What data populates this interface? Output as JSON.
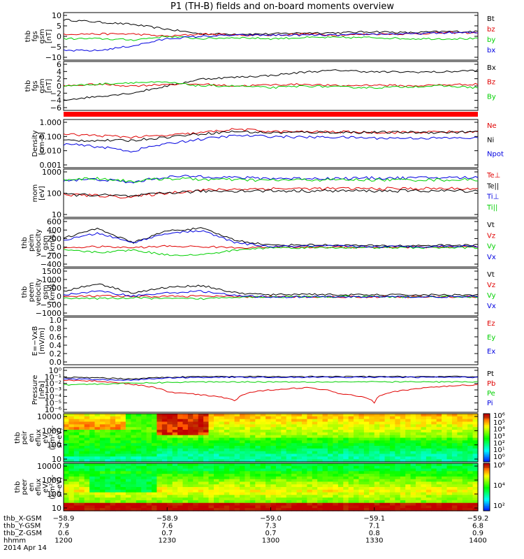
{
  "title": "P1 (TH-B) fields and on-board moments overview",
  "colors": {
    "black": "#000000",
    "red": "#e00000",
    "blue": "#0000e0",
    "green": "#00d000",
    "flag_bar": "#ff0000"
  },
  "panels": [
    {
      "id": "fgs-gsm",
      "ylabel": [
        "thb",
        "fgs",
        "gsm",
        "[nT]"
      ],
      "ticks": [
        "10",
        "5",
        "0",
        "−5",
        "−10"
      ],
      "legend": [
        {
          "label": "Bt",
          "color": "black"
        },
        {
          "label": "bz",
          "color": "red"
        },
        {
          "label": "by",
          "color": "green"
        },
        {
          "label": "bx",
          "color": "blue"
        }
      ]
    },
    {
      "id": "fgs-gsm-smoothed",
      "ylabel": [
        "thb",
        "fgs",
        "gsm",
        "[nT]"
      ],
      "ticks": [
        "6",
        "4",
        "2",
        "0",
        "−2",
        "−4",
        "−6"
      ],
      "legend": [
        {
          "label": "Bx",
          "color": "black"
        },
        {
          "label": "Bz",
          "color": "red"
        },
        {
          "label": "By",
          "color": "green"
        }
      ]
    },
    {
      "id": "density",
      "ylabel": [
        "Density",
        "[cm-3]"
      ],
      "ticks": [
        "1.000",
        "0.100",
        "0.010",
        "0.001"
      ],
      "legend": [
        {
          "label": "Ne",
          "color": "red"
        },
        {
          "label": "Ni",
          "color": "black"
        },
        {
          "label": "Npot",
          "color": "blue"
        }
      ]
    },
    {
      "id": "temperature",
      "ylabel": [
        "mom",
        "[eV]"
      ],
      "ticks": [
        "1000",
        "100",
        "10"
      ],
      "legend": [
        {
          "label": "Te⊥",
          "color": "red"
        },
        {
          "label": "Te||",
          "color": "black"
        },
        {
          "label": "Ti⊥",
          "color": "blue"
        },
        {
          "label": "Ti||",
          "color": "green"
        }
      ]
    },
    {
      "id": "peim-velocity",
      "ylabel": [
        "thb",
        "peim",
        "velocity",
        "gsm",
        "[km/s]"
      ],
      "ticks": [
        "600",
        "400",
        "200",
        "0",
        "−200",
        "−400"
      ],
      "legend": [
        {
          "label": "Vt",
          "color": "black"
        },
        {
          "label": "Vz",
          "color": "red"
        },
        {
          "label": "Vy",
          "color": "green"
        },
        {
          "label": "Vx",
          "color": "blue"
        }
      ]
    },
    {
      "id": "peem-velocity",
      "ylabel": [
        "thb",
        "peem",
        "velocity",
        "gsm",
        "[km/s]"
      ],
      "ticks": [
        "1500",
        "1000",
        "500",
        "0",
        "−500",
        "−1000"
      ],
      "legend": [
        {
          "label": "Vt",
          "color": "black"
        },
        {
          "label": "Vz",
          "color": "red"
        },
        {
          "label": "Vy",
          "color": "green"
        },
        {
          "label": "Vx",
          "color": "blue"
        }
      ]
    },
    {
      "id": "efield",
      "ylabel": [
        "E=−VxB",
        "[mV/m]"
      ],
      "ticks": [
        "1.0",
        "0.8",
        "0.6",
        "0.4",
        "0.2",
        "0.0"
      ],
      "legend": [
        {
          "label": "Ez",
          "color": "red"
        },
        {
          "label": "Ey",
          "color": "green"
        },
        {
          "label": "Ex",
          "color": "blue"
        }
      ]
    },
    {
      "id": "pressure",
      "ylabel": [
        "Pressure",
        "[nPa]"
      ],
      "ticks": [
        "10⁰",
        "10⁻¹",
        "10⁻²",
        "10⁻³",
        "10⁻⁴",
        "10⁻⁵",
        "10⁻⁶"
      ],
      "legend": [
        {
          "label": "Pt",
          "color": "black"
        },
        {
          "label": "Pb",
          "color": "red"
        },
        {
          "label": "Pe",
          "color": "green"
        },
        {
          "label": "Pi",
          "color": "blue"
        }
      ]
    },
    {
      "id": "peir-spec",
      "ylabel": [
        "thb",
        "peir",
        "en",
        "eflux",
        "eV/",
        "(cm²-s-",
        "sr-eV)"
      ],
      "ticks": [
        "10000",
        "1000",
        "100",
        "10"
      ],
      "colorbar_ticks": [
        "10⁶",
        "10⁵",
        "10⁴",
        "10³",
        "10²",
        "10¹",
        "10⁰"
      ]
    },
    {
      "id": "peer-spec",
      "ylabel": [
        "thb",
        "peer",
        "en",
        "eflux",
        "eV/",
        "(cm²-s-",
        "sr-eV)"
      ],
      "ticks": [
        "10000",
        "1000",
        "100",
        "10"
      ],
      "colorbar_ticks": [
        "10⁶",
        "10⁴",
        "10²"
      ]
    }
  ],
  "xaxis": {
    "row_labels": [
      "thb_X-GSM",
      "thb_Y-GSM",
      "thb_Z-GSM",
      "hhmm",
      "2014 Apr 14"
    ],
    "columns": [
      {
        "x_gsm": "−58.9",
        "y_gsm": "7.9",
        "z_gsm": "0.6",
        "hhmm": "1200"
      },
      {
        "x_gsm": "−58.9",
        "y_gsm": "7.6",
        "z_gsm": "0.7",
        "hhmm": "1230"
      },
      {
        "x_gsm": "−59.0",
        "y_gsm": "7.3",
        "z_gsm": "0.7",
        "hhmm": "1300"
      },
      {
        "x_gsm": "−59.1",
        "y_gsm": "7.1",
        "z_gsm": "0.8",
        "hhmm": "1330"
      },
      {
        "x_gsm": "−59.2",
        "y_gsm": "6.8",
        "z_gsm": "0.9",
        "hhmm": "1400"
      }
    ]
  },
  "chart_data": [
    {
      "type": "line",
      "panel": "fgs-gsm",
      "x_unit": "hhmm",
      "ylim": [
        -10,
        10
      ],
      "x": [
        "1200",
        "1210",
        "1220",
        "1230",
        "1240",
        "1250",
        "1300",
        "1310",
        "1320",
        "1330",
        "1340",
        "1350",
        "1400"
      ],
      "series": [
        {
          "name": "Bt",
          "color": "black",
          "values": [
            7,
            6,
            5,
            3,
            1,
            1,
            1,
            1.5,
            1.5,
            2,
            1.5,
            2,
            2
          ]
        },
        {
          "name": "bz",
          "color": "red",
          "values": [
            1,
            1,
            1,
            0,
            1,
            0.5,
            0.5,
            1,
            0.5,
            1,
            1,
            1.5,
            1.5
          ]
        },
        {
          "name": "by",
          "color": "green",
          "values": [
            -1,
            -1,
            -1.5,
            0,
            -1,
            -0.5,
            -1,
            -0.5,
            -0.5,
            -0.5,
            -1,
            -1,
            -1
          ]
        },
        {
          "name": "bx",
          "color": "blue",
          "values": [
            -6,
            -6,
            -4,
            -1,
            0,
            0.5,
            0.5,
            0.5,
            0.5,
            1,
            1,
            1.5,
            1.5
          ]
        }
      ]
    },
    {
      "type": "line",
      "panel": "fgs-gsm-smoothed",
      "x_unit": "hhmm",
      "ylim": [
        -7,
        7
      ],
      "x": [
        "1200",
        "1210",
        "1220",
        "1230",
        "1240",
        "1250",
        "1300",
        "1310",
        "1320",
        "1330",
        "1340",
        "1350",
        "1400"
      ],
      "series": [
        {
          "name": "Bx",
          "color": "black",
          "values": [
            -4,
            -3,
            -2,
            0,
            2,
            2.5,
            3,
            4,
            4.5,
            4,
            4,
            4,
            4.5
          ]
        },
        {
          "name": "Bz",
          "color": "red",
          "values": [
            0,
            0.5,
            0,
            0.5,
            0.5,
            0,
            0.3,
            0.5,
            0,
            0.3,
            0,
            0.3,
            0.5
          ]
        },
        {
          "name": "By",
          "color": "green",
          "values": [
            0,
            0.5,
            1,
            1,
            0,
            0,
            -0.5,
            0,
            -0.3,
            -0.5,
            -0.2,
            0,
            -0.5
          ]
        }
      ]
    },
    {
      "type": "line",
      "panel": "density",
      "x_unit": "hhmm",
      "yscale": "log",
      "ylim": [
        0.001,
        1.0
      ],
      "x": [
        "1200",
        "1210",
        "1220",
        "1230",
        "1240",
        "1250",
        "1300",
        "1310",
        "1320",
        "1330",
        "1340",
        "1350",
        "1400"
      ],
      "series": [
        {
          "name": "Ne",
          "color": "red",
          "values": [
            0.12,
            0.1,
            0.08,
            0.1,
            0.15,
            0.25,
            0.18,
            0.17,
            0.17,
            0.16,
            0.16,
            0.17,
            0.17
          ]
        },
        {
          "name": "Ni",
          "color": "black",
          "values": [
            0.05,
            0.05,
            0.05,
            0.08,
            0.13,
            0.18,
            0.15,
            0.16,
            0.16,
            0.16,
            0.16,
            0.16,
            0.17
          ]
        },
        {
          "name": "Npot",
          "color": "blue",
          "values": [
            0.03,
            0.02,
            0.01,
            0.03,
            0.06,
            0.1,
            0.09,
            0.08,
            0.08,
            0.07,
            0.07,
            0.07,
            0.07
          ]
        }
      ]
    },
    {
      "type": "line",
      "panel": "temperature",
      "x_unit": "hhmm",
      "yscale": "log",
      "ylim": [
        10,
        3000
      ],
      "x": [
        "1200",
        "1210",
        "1220",
        "1230",
        "1240",
        "1250",
        "1300",
        "1310",
        "1320",
        "1330",
        "1340",
        "1350",
        "1400"
      ],
      "series": [
        {
          "name": "Te⊥",
          "color": "red",
          "values": [
            150,
            130,
            110,
            180,
            250,
            280,
            300,
            300,
            300,
            300,
            300,
            300,
            300
          ]
        },
        {
          "name": "Te||",
          "color": "black",
          "values": [
            150,
            140,
            120,
            180,
            220,
            230,
            230,
            230,
            230,
            230,
            230,
            230,
            230
          ]
        },
        {
          "name": "Ti⊥",
          "color": "blue",
          "values": [
            800,
            900,
            600,
            1200,
            1300,
            1100,
            1000,
            1000,
            1000,
            1050,
            1050,
            1100,
            1100
          ]
        },
        {
          "name": "Ti||",
          "color": "green",
          "values": [
            900,
            1000,
            700,
            1000,
            900,
            850,
            800,
            850,
            850,
            850,
            850,
            850,
            850
          ]
        }
      ]
    },
    {
      "type": "line",
      "panel": "peim-velocity",
      "x_unit": "hhmm",
      "ylim": [
        -400,
        600
      ],
      "x": [
        "1200",
        "1210",
        "1220",
        "1230",
        "1240",
        "1250",
        "1300",
        "1310",
        "1320",
        "1330",
        "1340",
        "1350",
        "1400"
      ],
      "series": [
        {
          "name": "Vt",
          "color": "black",
          "values": [
            200,
            400,
            100,
            350,
            400,
            150,
            50,
            60,
            50,
            40,
            40,
            50,
            50
          ]
        },
        {
          "name": "Vz",
          "color": "red",
          "values": [
            0,
            20,
            0,
            30,
            20,
            0,
            10,
            10,
            10,
            10,
            10,
            10,
            10
          ]
        },
        {
          "name": "Vy",
          "color": "green",
          "values": [
            -50,
            -100,
            -50,
            -150,
            -150,
            -50,
            0,
            0,
            0,
            0,
            0,
            0,
            0
          ]
        },
        {
          "name": "Vx",
          "color": "blue",
          "values": [
            150,
            300,
            100,
            300,
            350,
            100,
            20,
            30,
            30,
            20,
            20,
            30,
            30
          ]
        }
      ]
    },
    {
      "type": "line",
      "panel": "peem-velocity",
      "x_unit": "hhmm",
      "ylim": [
        -1000,
        1500
      ],
      "x": [
        "1200",
        "1210",
        "1220",
        "1230",
        "1240",
        "1250",
        "1300",
        "1310",
        "1320",
        "1330",
        "1340",
        "1350",
        "1400"
      ],
      "series": [
        {
          "name": "Vt",
          "color": "black",
          "values": [
            300,
            700,
            200,
            500,
            600,
            200,
            100,
            150,
            100,
            100,
            100,
            100,
            100
          ]
        },
        {
          "name": "Vz",
          "color": "red",
          "values": [
            0,
            50,
            0,
            30,
            40,
            0,
            0,
            0,
            0,
            0,
            0,
            0,
            0
          ]
        },
        {
          "name": "Vy",
          "color": "green",
          "values": [
            -50,
            -100,
            -50,
            -100,
            -100,
            0,
            0,
            0,
            0,
            0,
            0,
            0,
            0
          ]
        },
        {
          "name": "Vx",
          "color": "blue",
          "values": [
            100,
            300,
            50,
            200,
            300,
            50,
            0,
            0,
            0,
            0,
            0,
            0,
            0
          ]
        }
      ]
    },
    {
      "type": "line",
      "panel": "efield",
      "x_unit": "hhmm",
      "ylim": [
        0,
        1.0
      ],
      "series": []
    },
    {
      "type": "line",
      "panel": "pressure",
      "x_unit": "hhmm",
      "yscale": "log",
      "ylim": [
        1e-06,
        1
      ],
      "x": [
        "1200",
        "1210",
        "1220",
        "1230",
        "1240",
        "1250",
        "1300",
        "1310",
        "1320",
        "1330",
        "1340",
        "1350",
        "1400"
      ],
      "series": [
        {
          "name": "Pt",
          "color": "black",
          "values": [
            0.05,
            0.04,
            0.03,
            0.05,
            0.06,
            0.06,
            0.06,
            0.06,
            0.06,
            0.06,
            0.06,
            0.06,
            0.06
          ]
        },
        {
          "name": "Pb",
          "color": "red",
          "values": [
            0.02,
            0.015,
            0.005,
            0.0005,
            0.0002,
            3e-05,
            0.001,
            0.002,
            0.0003,
            2e-05,
            0.001,
            0.003,
            0.005
          ]
        },
        {
          "name": "Pe",
          "color": "green",
          "values": [
            0.005,
            0.006,
            0.008,
            0.01,
            0.012,
            0.012,
            0.012,
            0.012,
            0.012,
            0.012,
            0.012,
            0.012,
            0.012
          ]
        },
        {
          "name": "Pi",
          "color": "blue",
          "values": [
            0.03,
            0.025,
            0.02,
            0.04,
            0.05,
            0.05,
            0.05,
            0.05,
            0.05,
            0.05,
            0.05,
            0.05,
            0.05
          ]
        }
      ]
    },
    {
      "type": "heatmap",
      "panel": "peir-spec",
      "x_unit": "hhmm",
      "yscale": "log",
      "ylim": [
        10,
        20000
      ],
      "colorbar": "log eflux 10^0 – 10^6"
    },
    {
      "type": "heatmap",
      "panel": "peer-spec",
      "x_unit": "hhmm",
      "yscale": "log",
      "ylim": [
        10,
        20000
      ],
      "colorbar": "log eflux 10^2 – 10^6"
    }
  ]
}
